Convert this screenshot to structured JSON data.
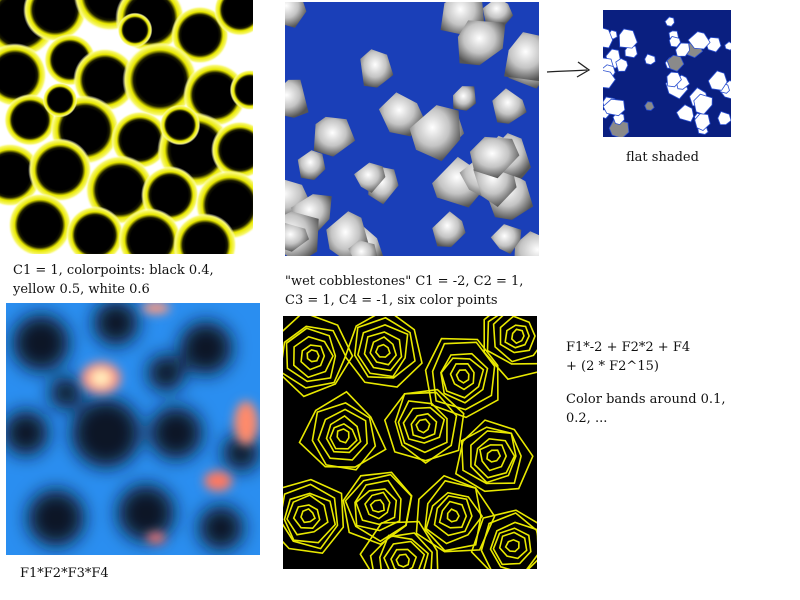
{
  "captions": {
    "yellow_black": {
      "line1": "C1 = 1, colorpoints: black 0.4,",
      "line2": "yellow 0.5, white 0.6"
    },
    "cobblestones": {
      "line1": "\"wet cobblestones\" C1 = -2, C2 = 1,",
      "line2": "C3 = 1, C4 = -1, six color points"
    },
    "flat": {
      "line1": "flat shaded"
    },
    "product": {
      "line1": "F1*F2*F3*F4"
    },
    "bands": {
      "line1": "F1*-2 + F2*2 + F4",
      "line2": "+ (2 * F2^15)",
      "line3": "Color bands around 0.1,",
      "line4": "0.2, ..."
    }
  },
  "icons": {
    "arrow": "right-arrow-icon"
  },
  "colors": {
    "black": "#000000",
    "yellow": "#f5f500",
    "white": "#ffffff",
    "cobble_blue": "#1a3fb8",
    "cobble_gray": "#b8b8b8",
    "heat_blue": "#2a8ef0",
    "heat_dark": "#0a1a2a",
    "heat_hot": "#ffe0b0",
    "band_yellow": "#e8e800"
  }
}
